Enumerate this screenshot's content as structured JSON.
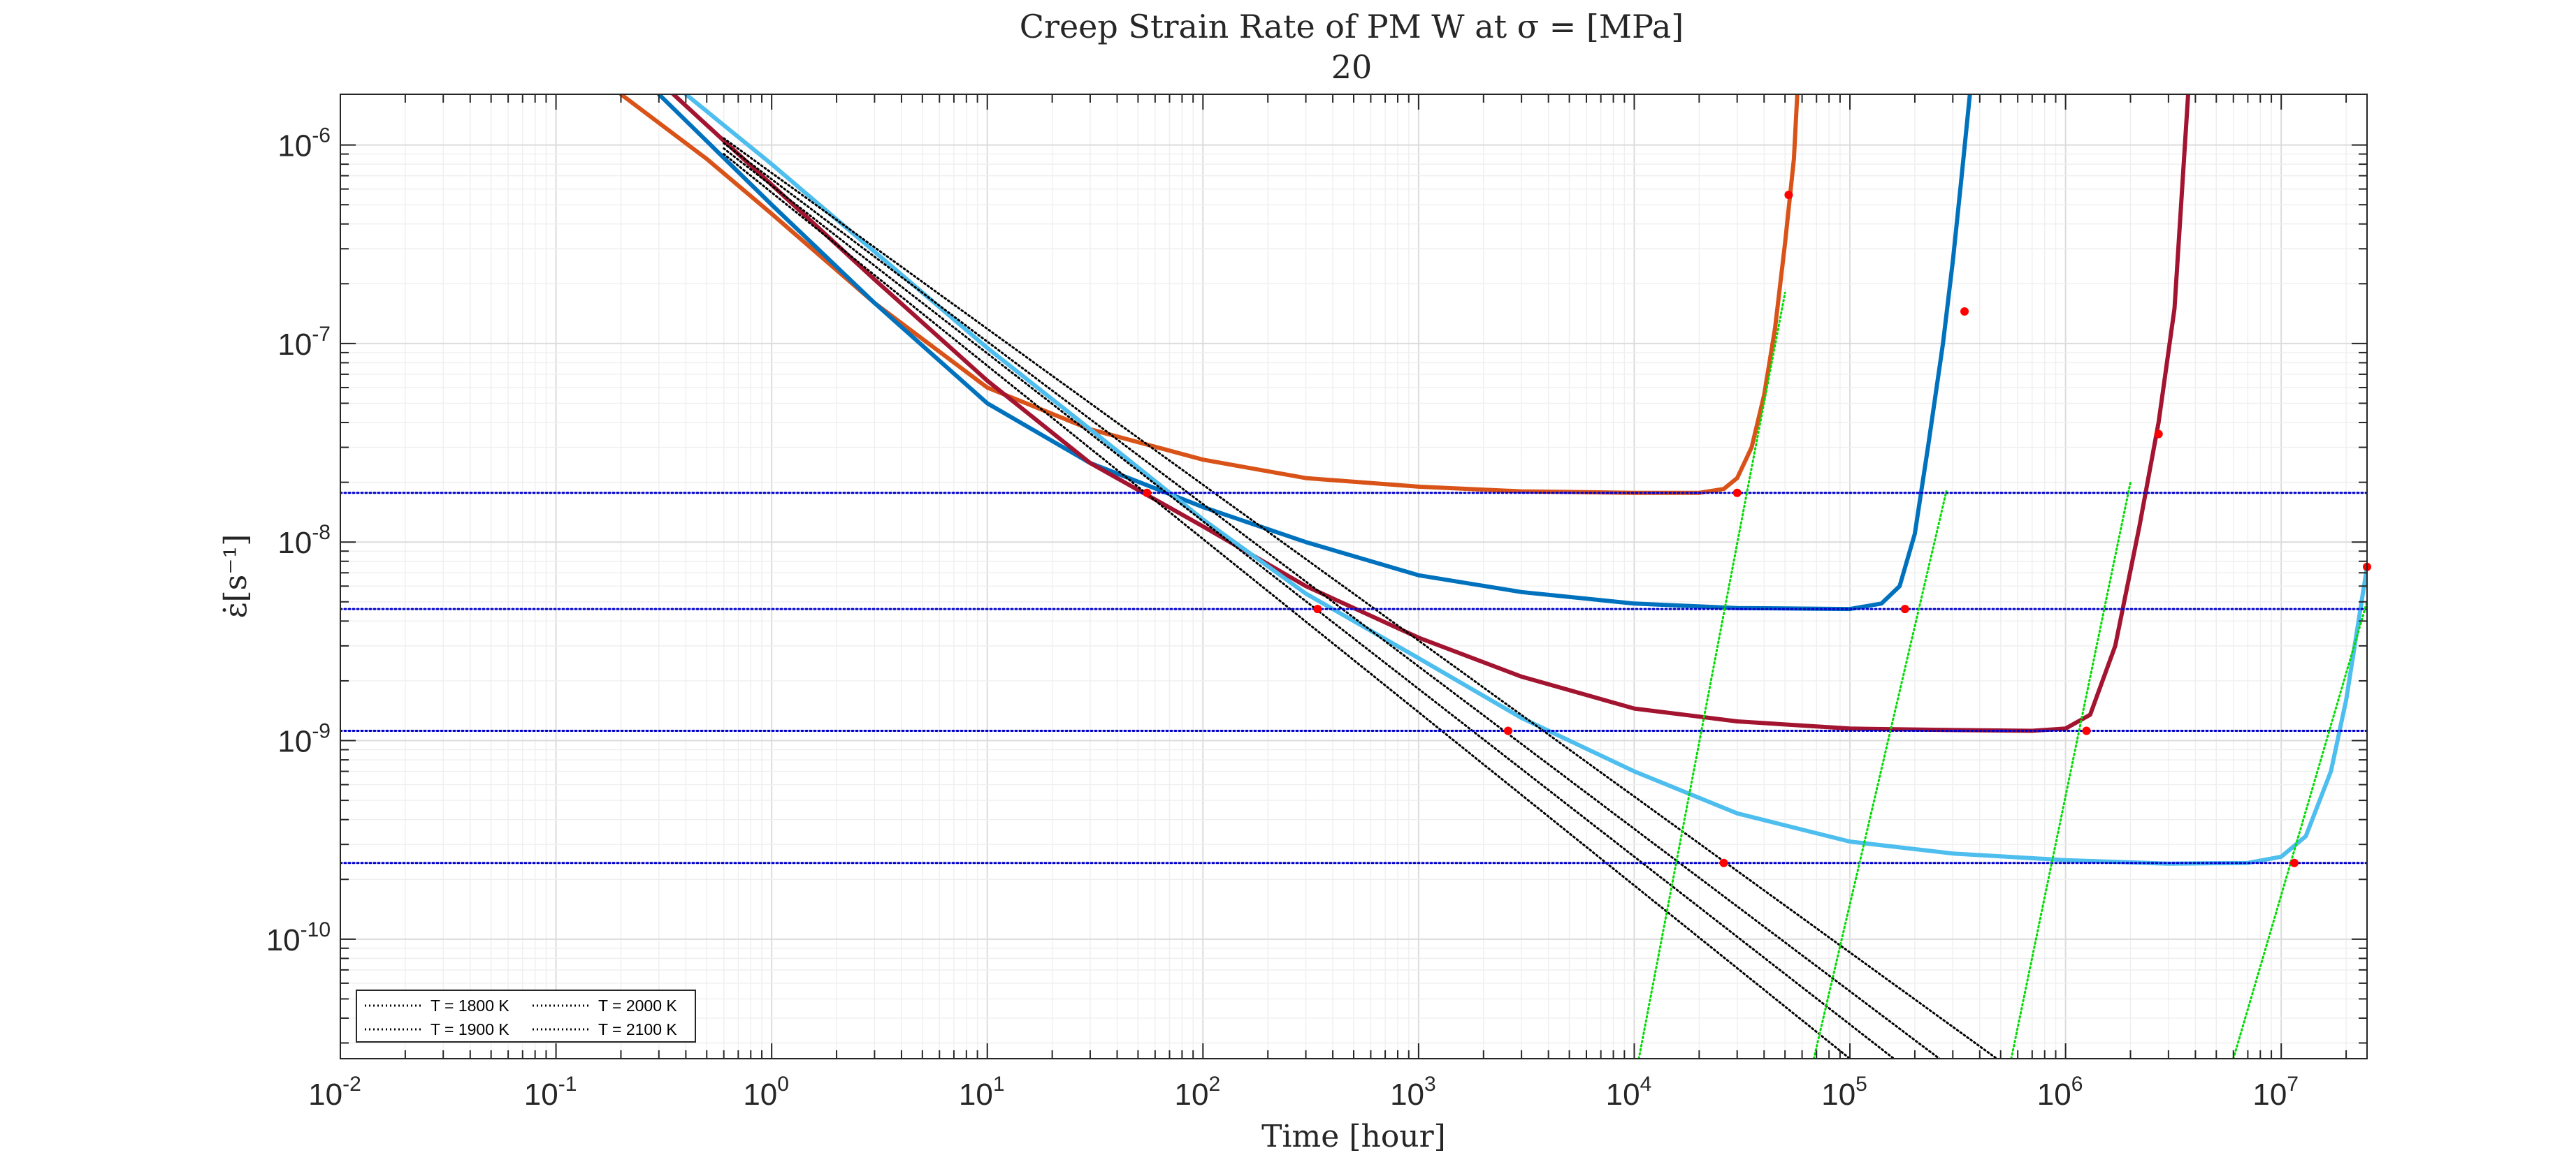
{
  "chart_data": {
    "type": "line",
    "title": "Creep Strain Rate of PM W at σ = [MPa]",
    "subtitle": "20",
    "xlabel": "Time [hour]",
    "ylabel": "ε̇[s⁻¹]",
    "x_scale": "log",
    "y_scale": "log",
    "xlim": [
      0.01,
      25000000
    ],
    "ylim": [
      2.5e-11,
      1.8e-06
    ],
    "grid": true,
    "minor_grid": true,
    "legend_placement": "bottom-left",
    "x_ticks": [
      {
        "value": 0.01,
        "base": "10",
        "exp": "-2"
      },
      {
        "value": 0.1,
        "base": "10",
        "exp": "-1"
      },
      {
        "value": 1,
        "base": "10",
        "exp": "0"
      },
      {
        "value": 10,
        "base": "10",
        "exp": "1"
      },
      {
        "value": 100,
        "base": "10",
        "exp": "2"
      },
      {
        "value": 1000,
        "base": "10",
        "exp": "3"
      },
      {
        "value": 10000,
        "base": "10",
        "exp": "4"
      },
      {
        "value": 100000,
        "base": "10",
        "exp": "5"
      },
      {
        "value": 1000000,
        "base": "10",
        "exp": "6"
      },
      {
        "value": 10000000,
        "base": "10",
        "exp": "7"
      }
    ],
    "y_ticks": [
      {
        "value": 1e-10,
        "base": "10",
        "exp": "-10"
      },
      {
        "value": 1e-09,
        "base": "10",
        "exp": "-9"
      },
      {
        "value": 1e-08,
        "base": "10",
        "exp": "-8"
      },
      {
        "value": 1e-07,
        "base": "10",
        "exp": "-7"
      },
      {
        "value": 1e-06,
        "base": "10",
        "exp": "-6"
      }
    ],
    "series": [
      {
        "color": "#D95319",
        "style": "solid",
        "x": [
          0.2,
          0.5,
          1,
          3,
          10,
          30,
          100,
          300,
          1000,
          3000,
          10000,
          20000,
          26000,
          30000,
          35000,
          40000,
          45000,
          50000,
          55000,
          57000
        ],
        "y": [
          1.8e-06,
          8.5e-07,
          4.5e-07,
          1.6e-07,
          6e-08,
          3.7e-08,
          2.6e-08,
          2.1e-08,
          1.9e-08,
          1.8e-08,
          1.77e-08,
          1.77e-08,
          1.85e-08,
          2.1e-08,
          3e-08,
          5.5e-08,
          1.2e-07,
          3.2e-07,
          8.5e-07,
          1.8e-06
        ]
      },
      {
        "color": "#0072BD",
        "style": "solid",
        "x": [
          0.3,
          1,
          3,
          10,
          30,
          100,
          300,
          1000,
          3000,
          10000,
          30000,
          100000,
          140000,
          170000,
          200000,
          230000,
          270000,
          300000,
          330000,
          360000
        ],
        "y": [
          1.8e-06,
          5e-07,
          1.6e-07,
          5e-08,
          2.5e-08,
          1.5e-08,
          1e-08,
          6.8e-09,
          5.6e-09,
          4.9e-09,
          4.65e-09,
          4.6e-09,
          4.9e-09,
          6e-09,
          1.1e-08,
          3e-08,
          1e-07,
          2.6e-07,
          7e-07,
          1.8e-06
        ]
      },
      {
        "color": "#A2142F",
        "style": "solid",
        "x": [
          0.35,
          1,
          3,
          10,
          30,
          100,
          300,
          1000,
          3000,
          10000,
          30000,
          100000,
          300000,
          700000,
          1000000,
          1300000,
          1700000,
          2200000,
          2700000,
          3200000,
          3700000
        ],
        "y": [
          1.8e-06,
          6.3e-07,
          2.1e-07,
          6.5e-08,
          2.5e-08,
          1.2e-08,
          6e-09,
          3.3e-09,
          2.1e-09,
          1.45e-09,
          1.25e-09,
          1.15e-09,
          1.13e-09,
          1.12e-09,
          1.15e-09,
          1.35e-09,
          3e-09,
          1.2e-08,
          4e-08,
          1.5e-07,
          1.8e-06
        ]
      },
      {
        "color": "#4DBEEE",
        "style": "solid",
        "x": [
          0.4,
          1,
          3,
          10,
          30,
          100,
          300,
          1000,
          3000,
          10000,
          30000,
          100000,
          300000,
          1000000,
          3000000,
          7000000,
          10000000,
          13000000,
          17000000,
          20000000,
          25000000
        ],
        "y": [
          1.8e-06,
          8e-07,
          2.9e-07,
          9.5e-08,
          3.7e-08,
          1.3e-08,
          5.5e-09,
          2.6e-09,
          1.3e-09,
          7e-10,
          4.3e-10,
          3.1e-10,
          2.7e-10,
          2.5e-10,
          2.4e-10,
          2.42e-10,
          2.6e-10,
          3.3e-10,
          7e-10,
          1.6e-09,
          7.5e-09
        ]
      },
      {
        "name": "T = 1800 K",
        "color": "#000000",
        "style": "dotted",
        "x": [
          0.6,
          100000
        ],
        "y": [
          9e-07,
          2.5e-11
        ]
      },
      {
        "name": "T = 1900 K",
        "color": "#000000",
        "style": "dotted",
        "x": [
          0.6,
          160000
        ],
        "y": [
          9.6e-07,
          2.5e-11
        ]
      },
      {
        "name": "T = 2000 K",
        "color": "#000000",
        "style": "dotted",
        "x": [
          0.6,
          260000
        ],
        "y": [
          1.02e-06,
          2.5e-11
        ]
      },
      {
        "name": "T = 2100 K",
        "color": "#000000",
        "style": "dotted",
        "x": [
          0.6,
          480000
        ],
        "y": [
          1.08e-06,
          2.5e-11
        ]
      },
      {
        "color": "#0000CC",
        "style": "dotted",
        "x": [
          0.01,
          25000000
        ],
        "y": [
          1.77e-08,
          1.77e-08
        ]
      },
      {
        "color": "#0000CC",
        "style": "dotted",
        "x": [
          0.01,
          25000000
        ],
        "y": [
          4.6e-09,
          4.6e-09
        ]
      },
      {
        "color": "#0000CC",
        "style": "dotted",
        "x": [
          0.01,
          25000000
        ],
        "y": [
          1.12e-09,
          1.12e-09
        ]
      },
      {
        "color": "#0000CC",
        "style": "dotted",
        "x": [
          0.01,
          25000000
        ],
        "y": [
          2.42e-10,
          2.42e-10
        ]
      },
      {
        "color": "#00DD00",
        "style": "dotted",
        "x": [
          10500,
          50000
        ],
        "y": [
          2.5e-11,
          1.8e-07
        ]
      },
      {
        "color": "#00DD00",
        "style": "dotted",
        "x": [
          68000,
          280000
        ],
        "y": [
          2.5e-11,
          1.8e-08
        ]
      },
      {
        "color": "#00DD00",
        "style": "dotted",
        "x": [
          560000,
          2000000
        ],
        "y": [
          2.5e-11,
          2e-08
        ]
      },
      {
        "color": "#00DD00",
        "style": "dotted",
        "x": [
          6000000,
          25000000
        ],
        "y": [
          2.5e-11,
          5e-09
        ]
      }
    ],
    "markers": {
      "color": "#FF0000",
      "x": [
        52000,
        30000,
        55,
        340000,
        180000,
        340,
        2700000,
        1250000,
        2600,
        25000000,
        11500000,
        26000
      ],
      "y": [
        5.6e-07,
        1.77e-08,
        1.77e-08,
        1.45e-07,
        4.6e-09,
        4.6e-09,
        3.5e-08,
        1.12e-09,
        1.12e-09,
        7.5e-09,
        2.42e-10,
        2.42e-10
      ]
    },
    "legend": {
      "columns": 2,
      "entries": [
        "T = 1800 K",
        "T = 2000 K",
        "T = 1900 K",
        "T = 2100 K"
      ]
    }
  }
}
